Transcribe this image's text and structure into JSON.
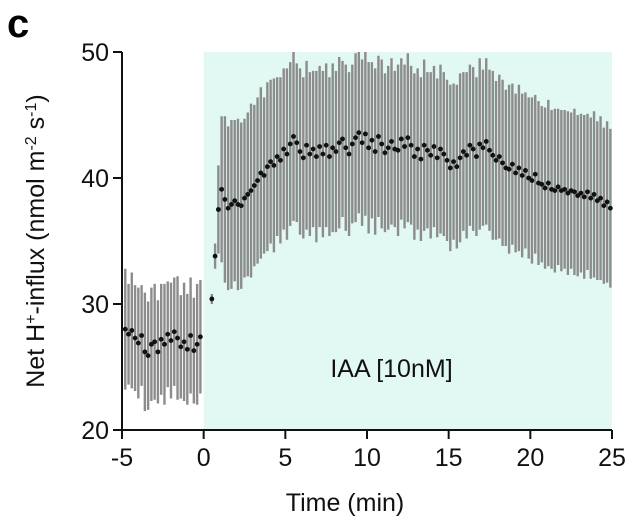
{
  "panel_label": "c",
  "chart_data": {
    "type": "scatter",
    "xlabel": "Time (min)",
    "ylabel_parts": {
      "p1": "Net H",
      "p1_sup": "+",
      "p2": "-influx (nmol m",
      "p2_sup": "-2",
      "p3": " s",
      "p3_sup": "-1",
      "p4": ")"
    },
    "xlim": [
      -5,
      25
    ],
    "ylim": [
      20,
      50
    ],
    "xticks": [
      -5,
      0,
      5,
      10,
      15,
      20,
      25
    ],
    "yticks": [
      20,
      30,
      40,
      50
    ],
    "treatment_region": {
      "x_start": 0,
      "x_end": 25,
      "color": "#e2f8f3",
      "label": "IAA [10nM]"
    },
    "error_bar_color": "#8c8c8c",
    "point_color": "#111111",
    "series": [
      {
        "x": [
          -4.8,
          -4.6,
          -4.4,
          -4.2,
          -4.0,
          -3.8,
          -3.6,
          -3.4,
          -3.2,
          -3.0,
          -2.8,
          -2.6,
          -2.4,
          -2.2,
          -2.0,
          -1.8,
          -1.6,
          -1.4,
          -1.2,
          -1.0,
          -0.8,
          -0.6,
          -0.4,
          -0.2,
          0.5,
          0.7,
          0.9,
          1.1,
          1.3,
          1.5,
          1.7,
          1.9,
          2.1,
          2.3,
          2.5,
          2.7,
          2.9,
          3.1,
          3.3,
          3.5,
          3.7,
          3.9,
          4.1,
          4.3,
          4.5,
          4.7,
          4.9,
          5.1,
          5.3,
          5.5,
          5.7,
          5.9,
          6.1,
          6.3,
          6.5,
          6.7,
          6.9,
          7.1,
          7.3,
          7.5,
          7.7,
          7.9,
          8.1,
          8.3,
          8.5,
          8.7,
          8.9,
          9.1,
          9.3,
          9.5,
          9.7,
          9.9,
          10.1,
          10.3,
          10.5,
          10.7,
          10.9,
          11.1,
          11.3,
          11.5,
          11.7,
          11.9,
          12.1,
          12.3,
          12.5,
          12.7,
          12.9,
          13.1,
          13.3,
          13.5,
          13.7,
          13.9,
          14.1,
          14.3,
          14.5,
          14.7,
          14.9,
          15.1,
          15.3,
          15.5,
          15.7,
          15.9,
          16.1,
          16.3,
          16.5,
          16.7,
          16.9,
          17.1,
          17.3,
          17.5,
          17.7,
          17.9,
          18.1,
          18.3,
          18.5,
          18.7,
          18.9,
          19.1,
          19.3,
          19.5,
          19.7,
          19.9,
          20.1,
          20.3,
          20.5,
          20.7,
          20.9,
          21.1,
          21.3,
          21.5,
          21.7,
          21.9,
          22.1,
          22.3,
          22.5,
          22.7,
          22.9,
          23.1,
          23.3,
          23.5,
          23.7,
          23.9,
          24.1,
          24.3,
          24.5,
          24.7,
          24.9
        ],
        "y": [
          28.0,
          27.6,
          27.9,
          27.3,
          26.9,
          27.5,
          26.2,
          25.9,
          26.8,
          27.0,
          26.2,
          27.2,
          26.8,
          27.6,
          27.1,
          27.8,
          27.3,
          26.6,
          27.0,
          26.4,
          27.5,
          26.3,
          26.8,
          27.4,
          30.4,
          33.8,
          37.5,
          39.1,
          38.3,
          37.6,
          37.9,
          38.2,
          37.9,
          37.8,
          38.4,
          38.7,
          39.0,
          39.4,
          39.8,
          40.4,
          40.2,
          40.9,
          41.3,
          41.0,
          41.7,
          41.4,
          42.3,
          41.9,
          42.7,
          43.3,
          42.8,
          42.1,
          41.6,
          42.6,
          41.9,
          42.3,
          41.7,
          42.5,
          41.9,
          42.6,
          41.7,
          42.4,
          42.1,
          42.8,
          43.1,
          42.4,
          41.9,
          42.7,
          43.2,
          43.6,
          42.8,
          43.5,
          42.4,
          43.0,
          42.1,
          43.3,
          42.7,
          42.0,
          42.4,
          42.9,
          42.3,
          42.2,
          43.1,
          42.5,
          43.2,
          42.6,
          41.7,
          42.3,
          41.5,
          42.6,
          42.2,
          41.8,
          42.5,
          41.6,
          42.3,
          41.9,
          41.4,
          40.8,
          41.3,
          40.9,
          41.6,
          42.1,
          41.8,
          42.6,
          42.3,
          41.7,
          42.7,
          42.4,
          42.9,
          42.2,
          41.8,
          41.4,
          41.7,
          41.2,
          40.8,
          40.7,
          41.1,
          40.4,
          40.8,
          40.2,
          40.6,
          40.0,
          39.8,
          40.3,
          39.6,
          39.5,
          39.2,
          39.6,
          39.1,
          39.0,
          39.3,
          39.0,
          39.1,
          38.8,
          39.0,
          38.9,
          38.6,
          38.8,
          38.5,
          38.9,
          38.4,
          38.7,
          38.2,
          38.4,
          37.8,
          38.1,
          37.6
        ],
        "err": [
          4.8,
          4.0,
          4.6,
          4.2,
          4.4,
          4.0,
          4.7,
          4.3,
          4.5,
          4.6,
          4.1,
          4.4,
          4.8,
          4.2,
          4.6,
          4.3,
          4.9,
          4.1,
          4.7,
          4.4,
          4.6,
          4.2,
          4.8,
          4.5,
          0.4,
          1.0,
          3.5,
          5.8,
          6.6,
          6.5,
          6.7,
          6.4,
          6.8,
          6.6,
          6.3,
          6.5,
          6.9,
          6.4,
          6.6,
          6.8,
          6.2,
          6.7,
          6.5,
          6.9,
          6.3,
          6.6,
          6.4,
          6.8,
          6.5,
          6.7,
          6.3,
          6.6,
          6.4,
          6.7,
          6.5,
          6.2,
          6.8,
          6.4,
          6.6,
          6.5,
          6.3,
          6.7,
          6.4,
          6.8,
          6.2,
          6.6,
          6.5,
          6.3,
          6.7,
          6.4,
          6.6,
          6.5,
          6.8,
          6.2,
          6.6,
          6.4,
          6.7,
          6.3,
          6.5,
          6.6,
          6.2,
          6.8,
          6.4,
          6.5,
          6.7,
          6.3,
          6.6,
          6.4,
          6.5,
          6.8,
          6.2,
          6.6,
          6.4,
          6.3,
          6.7,
          6.5,
          6.4,
          6.6,
          6.2,
          6.5,
          6.7,
          6.3,
          6.6,
          6.4,
          6.5,
          6.3,
          6.8,
          6.2,
          6.6,
          6.4,
          6.7,
          6.3,
          6.5,
          6.6,
          6.2,
          6.7,
          6.4,
          6.3,
          6.6,
          6.5,
          6.2,
          6.4,
          6.6,
          6.3,
          6.5,
          6.2,
          6.4,
          6.6,
          6.3,
          6.5,
          6.2,
          6.4,
          6.3,
          6.5,
          6.2,
          6.6,
          6.4,
          6.3,
          6.5,
          6.2,
          6.4,
          6.6,
          6.3,
          6.5,
          6.2,
          6.4,
          6.3
        ]
      }
    ]
  }
}
